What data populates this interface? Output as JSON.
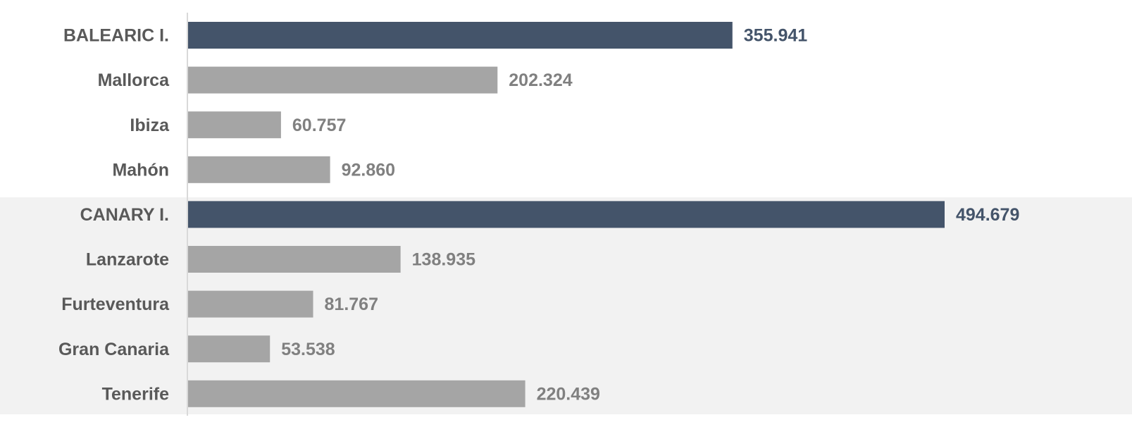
{
  "chart_data": {
    "type": "barh",
    "categories": [
      "BALEARIC I.",
      "Mallorca",
      "Ibiza",
      "Mahón",
      "CANARY I.",
      "Lanzarote",
      "Furteventura",
      "Gran Canaria",
      "Tenerife"
    ],
    "values": [
      355941,
      202324,
      60757,
      92860,
      494679,
      138935,
      81767,
      53538,
      220439
    ],
    "value_labels": [
      "355.941",
      "202.324",
      "60.757",
      "92.860",
      "494.679",
      "138.935",
      "81.767",
      "53.538",
      "220.439"
    ],
    "colors": [
      "#44546a",
      "#a5a5a5",
      "#a5a5a5",
      "#a5a5a5",
      "#44546a",
      "#a5a5a5",
      "#a5a5a5",
      "#a5a5a5",
      "#a5a5a5"
    ]
  }
}
